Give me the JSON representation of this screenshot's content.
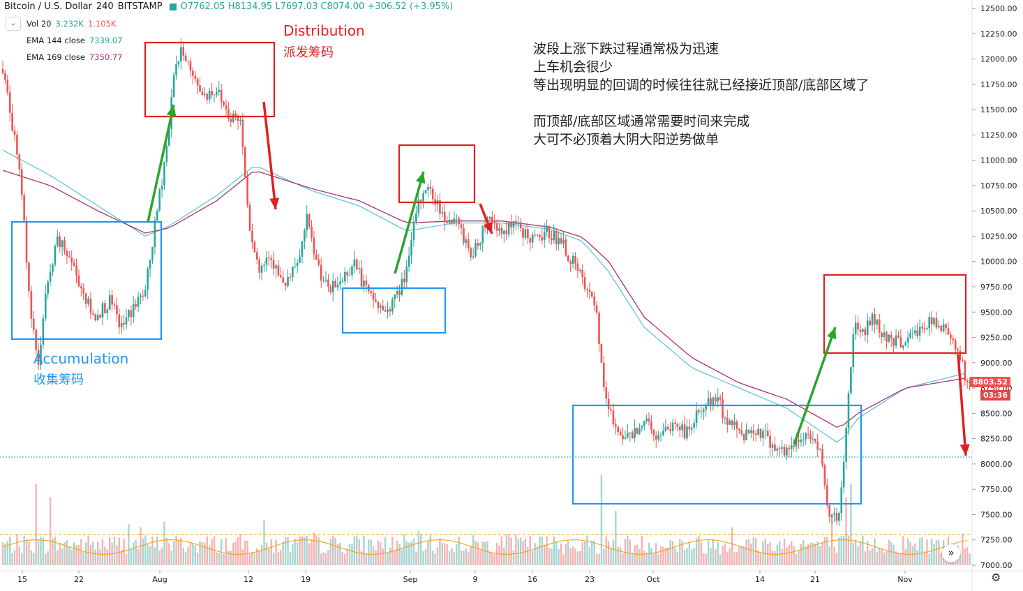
{
  "header": {
    "symbol": "Bitcoin / U.S. Dollar",
    "interval": "240",
    "exchange": "BITSTAMP",
    "ohlc": "O7762.05  H8134.95  L7697.03  C8074.00  +306.52 (+3.95%)"
  },
  "indicators": {
    "vol": {
      "label": "Vol 20",
      "v1": "3.232K",
      "v2": "1.105K"
    },
    "ema144": {
      "label": "EMA 144 close",
      "value": "7339.07"
    },
    "ema169": {
      "label": "EMA 169 close",
      "value": "7350.77"
    }
  },
  "annotations": {
    "distribution_en": "Distribution",
    "distribution_zh": "派发筹码",
    "accumulation_en": "Accumulation",
    "accumulation_zh": "收集筹码"
  },
  "note": {
    "line1": "波段上涨下跌过程通常极为迅速",
    "line2": "上车机会很少",
    "line3": "等出现明显的回调的时候往往就已经接近顶部/底部区域了",
    "line4": "而顶部/底部区域通常需要时间来完成",
    "line5": "大可不必顶着大阴大阳逆势做单"
  },
  "last_price": {
    "value": "8803.52",
    "countdown": "03:36"
  },
  "colors": {
    "up": "#26a69a",
    "down": "#ef5350",
    "ema144": "#5bc8e0",
    "ema169": "#b0306a",
    "box_red": "#e02020",
    "box_blue": "#2196f3",
    "arrow_green": "#2aa52a",
    "arrow_red": "#e02020"
  },
  "chart_data": {
    "type": "candlestick",
    "y_axis": {
      "min": 7000,
      "max": 12500,
      "ticks": [
        "12500.00",
        "12250.00",
        "12000.00",
        "11750.00",
        "11500.00",
        "11250.00",
        "11000.00",
        "10750.00",
        "10500.00",
        "10250.00",
        "10000.00",
        "9750.00",
        "9500.00",
        "9250.00",
        "9000.00",
        "8750.00",
        "8500.00",
        "8250.00",
        "8000.00",
        "7750.00",
        "7500.00",
        "7250.00",
        "7000.00"
      ]
    },
    "x_axis": {
      "ticks": [
        "15",
        "22",
        "Aug",
        "12",
        "19",
        "Sep",
        "9",
        "16",
        "23",
        "Oct",
        "14",
        "21",
        "Nov"
      ]
    },
    "close_path": [
      [
        0,
        11900
      ],
      [
        4,
        11350
      ],
      [
        8,
        10700
      ],
      [
        12,
        9400
      ],
      [
        15,
        9000
      ],
      [
        18,
        9650
      ],
      [
        23,
        10200
      ],
      [
        28,
        10050
      ],
      [
        33,
        9750
      ],
      [
        38,
        9450
      ],
      [
        45,
        9600
      ],
      [
        50,
        9350
      ],
      [
        55,
        9550
      ],
      [
        60,
        9700
      ],
      [
        65,
        10500
      ],
      [
        70,
        11300
      ],
      [
        72,
        11900
      ],
      [
        76,
        12100
      ],
      [
        80,
        11800
      ],
      [
        85,
        11650
      ],
      [
        90,
        11700
      ],
      [
        95,
        11450
      ],
      [
        100,
        11400
      ],
      [
        104,
        10350
      ],
      [
        108,
        9900
      ],
      [
        112,
        10100
      ],
      [
        118,
        9750
      ],
      [
        124,
        9950
      ],
      [
        128,
        10400
      ],
      [
        132,
        10000
      ],
      [
        137,
        9700
      ],
      [
        142,
        9800
      ],
      [
        148,
        10000
      ],
      [
        153,
        9700
      ],
      [
        157,
        9600
      ],
      [
        160,
        9500
      ],
      [
        166,
        9650
      ],
      [
        171,
        10000
      ],
      [
        174,
        10500
      ],
      [
        178,
        10750
      ],
      [
        182,
        10600
      ],
      [
        186,
        10450
      ],
      [
        192,
        10350
      ],
      [
        198,
        10050
      ],
      [
        204,
        10450
      ],
      [
        210,
        10300
      ],
      [
        216,
        10350
      ],
      [
        224,
        10200
      ],
      [
        230,
        10300
      ],
      [
        236,
        10150
      ],
      [
        242,
        9900
      ],
      [
        250,
        9500
      ],
      [
        253,
        8700
      ],
      [
        257,
        8400
      ],
      [
        263,
        8250
      ],
      [
        270,
        8450
      ],
      [
        276,
        8250
      ],
      [
        283,
        8400
      ],
      [
        288,
        8300
      ],
      [
        294,
        8550
      ],
      [
        300,
        8650
      ],
      [
        306,
        8400
      ],
      [
        312,
        8300
      ],
      [
        318,
        8350
      ],
      [
        324,
        8200
      ],
      [
        330,
        8100
      ],
      [
        336,
        8250
      ],
      [
        340,
        8300
      ],
      [
        345,
        8050
      ],
      [
        348,
        7450
      ],
      [
        352,
        7500
      ],
      [
        356,
        8650
      ],
      [
        358,
        9350
      ],
      [
        362,
        9300
      ],
      [
        366,
        9450
      ],
      [
        370,
        9300
      ],
      [
        376,
        9200
      ],
      [
        382,
        9250
      ],
      [
        390,
        9400
      ],
      [
        398,
        9300
      ],
      [
        402,
        9150
      ],
      [
        406,
        8800
      ]
    ],
    "volume_spikes": [
      [
        14,
        0.9
      ],
      [
        20,
        0.75
      ],
      [
        53,
        0.45
      ],
      [
        58,
        0.42
      ],
      [
        68,
        0.48
      ],
      [
        110,
        0.5
      ],
      [
        131,
        0.36
      ],
      [
        175,
        0.38
      ],
      [
        213,
        0.34
      ],
      [
        252,
        1.0
      ],
      [
        258,
        0.6
      ],
      [
        307,
        0.42
      ],
      [
        349,
        0.55
      ],
      [
        355,
        0.75
      ],
      [
        357,
        0.9
      ],
      [
        404,
        0.35
      ]
    ],
    "ema144": [
      [
        0,
        11100
      ],
      [
        20,
        10850
      ],
      [
        40,
        10550
      ],
      [
        60,
        10250
      ],
      [
        70,
        10350
      ],
      [
        90,
        10650
      ],
      [
        106,
        10950
      ],
      [
        130,
        10700
      ],
      [
        150,
        10550
      ],
      [
        170,
        10300
      ],
      [
        190,
        10380
      ],
      [
        210,
        10380
      ],
      [
        230,
        10320
      ],
      [
        244,
        10200
      ],
      [
        255,
        9900
      ],
      [
        270,
        9350
      ],
      [
        290,
        8950
      ],
      [
        310,
        8750
      ],
      [
        330,
        8550
      ],
      [
        352,
        8200
      ],
      [
        360,
        8450
      ],
      [
        380,
        8750
      ],
      [
        406,
        8900
      ]
    ],
    "ema169": [
      [
        0,
        10900
      ],
      [
        20,
        10750
      ],
      [
        40,
        10500
      ],
      [
        60,
        10280
      ],
      [
        70,
        10330
      ],
      [
        90,
        10600
      ],
      [
        106,
        10900
      ],
      [
        130,
        10720
      ],
      [
        150,
        10600
      ],
      [
        170,
        10380
      ],
      [
        190,
        10400
      ],
      [
        210,
        10400
      ],
      [
        230,
        10340
      ],
      [
        244,
        10240
      ],
      [
        255,
        10000
      ],
      [
        270,
        9450
      ],
      [
        290,
        9050
      ],
      [
        310,
        8800
      ],
      [
        330,
        8640
      ],
      [
        352,
        8350
      ],
      [
        360,
        8500
      ],
      [
        380,
        8750
      ],
      [
        406,
        8850
      ]
    ]
  }
}
